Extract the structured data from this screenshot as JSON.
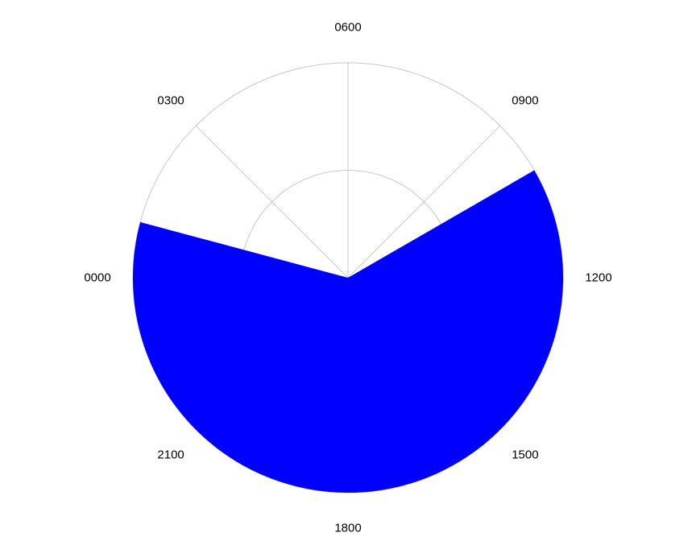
{
  "chart_data": {
    "type": "polar-area",
    "title": "",
    "angular_tick_labels": [
      "0000",
      "0300",
      "0600",
      "0900",
      "1200",
      "1500",
      "1800",
      "2100"
    ],
    "angular_axis": {
      "unit": "hour",
      "range": [
        0,
        24
      ],
      "zero_position": "left",
      "direction": "clockwise"
    },
    "radial_range": [
      0,
      1
    ],
    "radial_gridlines": [
      0.5,
      1.0
    ],
    "series": [
      {
        "start_hour": 10,
        "end_hour": 1,
        "value": 1.0
      }
    ],
    "grid": true,
    "colors": {
      "fill": "#0000ff",
      "grid": "#c8c8c8"
    }
  }
}
